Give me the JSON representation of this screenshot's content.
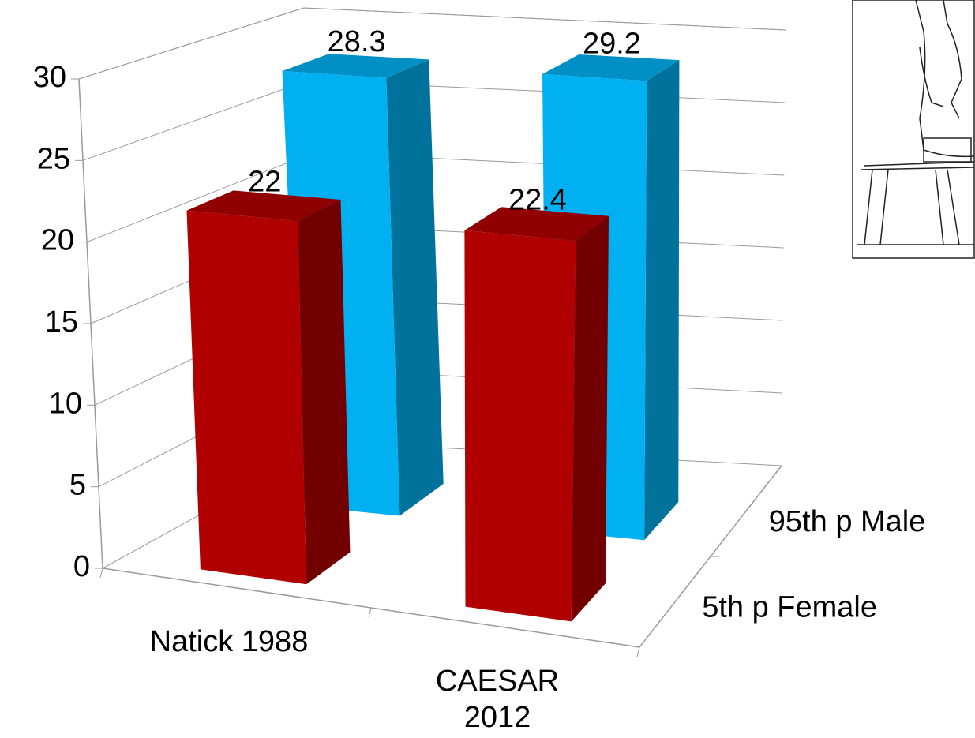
{
  "chart_data": {
    "type": "bar3d",
    "categories": [
      "Natick 1988",
      "CAESAR 2012"
    ],
    "series": [
      {
        "name": "5th p Female",
        "color": "#b00000",
        "values": [
          22,
          22.4
        ]
      },
      {
        "name": "95th p Male",
        "color": "#00b0f0",
        "values": [
          28.3,
          29.2
        ]
      }
    ],
    "ylim": [
      0,
      30
    ],
    "yticks": [
      0,
      5,
      10,
      15,
      20,
      25,
      30
    ],
    "grid": true
  }
}
